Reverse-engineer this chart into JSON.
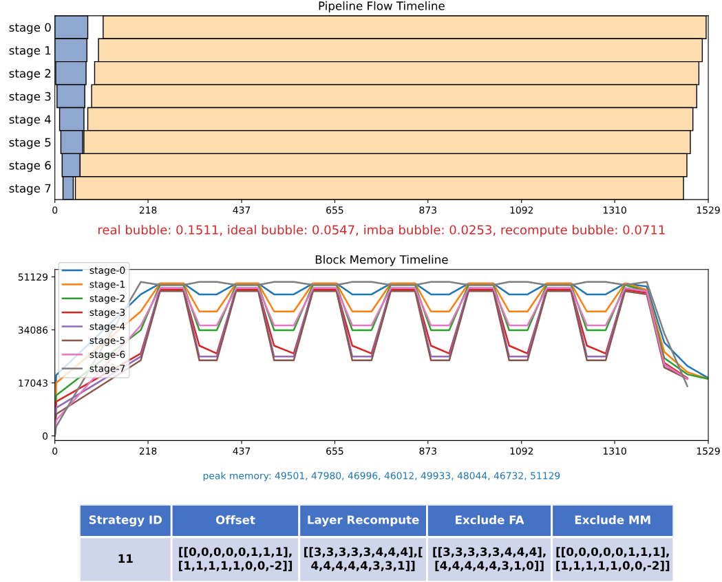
{
  "chart_data": [
    {
      "type": "bar",
      "orientation": "horizontal",
      "title": "Pipeline Flow Timeline",
      "categories": [
        "stage 0",
        "stage 1",
        "stage 2",
        "stage 3",
        "stage 4",
        "stage 5",
        "stage 6",
        "stage 7"
      ],
      "series": [
        {
          "color": "#8fa8d0",
          "base": [
            0,
            0,
            2,
            5,
            11,
            14,
            17,
            19
          ],
          "values": [
            77,
            75,
            71,
            65,
            57,
            51,
            42,
            24
          ]
        },
        {
          "color": "#fddcae",
          "base": [
            113,
            102,
            93,
            86,
            77,
            68,
            59,
            48
          ],
          "values": [
            1411,
            1413,
            1414,
            1416,
            1416,
            1419,
            1420,
            1423
          ]
        }
      ],
      "xlim": [
        0,
        1529
      ],
      "xticks": [
        0,
        218,
        437,
        655,
        873,
        1092,
        1310,
        1529
      ],
      "grid": false,
      "annotations": [
        "real bubble: 0.1511, ideal bubble: 0.0547, imba bubble: 0.0253, recompute bubble: 0.0711"
      ]
    },
    {
      "type": "line",
      "title": "Block Memory Timeline",
      "x": [
        0,
        3,
        201,
        246,
        301,
        338,
        379,
        424,
        476,
        513,
        559,
        604,
        659,
        696,
        741,
        786,
        843,
        880,
        923,
        968,
        1026,
        1063,
        1106,
        1151,
        1208,
        1245,
        1289,
        1334,
        1385,
        1426,
        1480,
        1529
      ],
      "series": [
        {
          "name": "stage-0",
          "color": "#1f77b4",
          "values": [
            0,
            19500,
            45500,
            49000,
            49000,
            45500,
            45500,
            49000,
            49000,
            45500,
            45500,
            49000,
            49000,
            45500,
            45500,
            49000,
            49000,
            45500,
            45500,
            49000,
            49000,
            45500,
            45500,
            49000,
            49000,
            45500,
            45500,
            49000,
            48000,
            30000,
            22500,
            18600
          ]
        },
        {
          "name": "stage-1",
          "color": "#ff7f0e",
          "values": [
            0,
            17000,
            40000,
            49000,
            49000,
            40000,
            40000,
            49000,
            49000,
            40000,
            40000,
            49000,
            49000,
            40000,
            40000,
            49000,
            49000,
            40000,
            40000,
            49000,
            49000,
            40000,
            40000,
            49000,
            49000,
            40000,
            40000,
            49000,
            47000,
            27000,
            20500,
            18300
          ]
        },
        {
          "name": "stage-2",
          "color": "#2ca02c",
          "values": [
            0,
            13000,
            34000,
            48500,
            48500,
            34000,
            34000,
            48500,
            48500,
            34000,
            34000,
            48500,
            48500,
            34000,
            34000,
            48500,
            48500,
            34000,
            34000,
            48500,
            48500,
            34000,
            34000,
            48500,
            48500,
            34000,
            34000,
            48500,
            46500,
            25000,
            19800,
            18300
          ]
        },
        {
          "name": "stage-3",
          "color": "#d62728",
          "values": [
            0,
            11000,
            26500,
            47000,
            47000,
            29000,
            26500,
            47000,
            47000,
            29000,
            26500,
            47000,
            47000,
            29000,
            26500,
            47000,
            47000,
            29000,
            26500,
            47000,
            47000,
            29000,
            26500,
            47000,
            47000,
            29000,
            26500,
            47000,
            46000,
            23500,
            18600,
            null
          ]
        },
        {
          "name": "stage-4",
          "color": "#9467bd",
          "values": [
            0,
            9000,
            25500,
            47500,
            47500,
            25500,
            25500,
            47500,
            47500,
            25500,
            25500,
            47500,
            47500,
            25500,
            25500,
            47500,
            47500,
            25500,
            25500,
            47500,
            47500,
            25500,
            25500,
            47500,
            47500,
            25500,
            25500,
            47500,
            46500,
            22800,
            18400,
            null
          ]
        },
        {
          "name": "stage-5",
          "color": "#8c564b",
          "values": [
            0,
            7000,
            24300,
            46500,
            46500,
            24300,
            24300,
            46500,
            46500,
            24300,
            24300,
            46500,
            46500,
            24300,
            24300,
            46500,
            46500,
            24300,
            24300,
            46500,
            46500,
            24300,
            24300,
            46500,
            46500,
            24300,
            24300,
            46500,
            45500,
            22000,
            18300,
            null
          ]
        },
        {
          "name": "stage-6",
          "color": "#e377c2",
          "values": [
            0,
            5000,
            35500,
            47500,
            47500,
            35500,
            35500,
            47500,
            47500,
            35500,
            35500,
            47500,
            47500,
            35500,
            35500,
            47500,
            47500,
            35500,
            35500,
            47500,
            47500,
            35500,
            35500,
            47500,
            47500,
            35500,
            35500,
            47500,
            46500,
            23000,
            18300,
            null
          ]
        },
        {
          "name": "stage-7",
          "color": "#7f7f7f",
          "values": [
            0,
            3000,
            49500,
            48500,
            48500,
            49500,
            49500,
            48500,
            48500,
            49500,
            49500,
            48500,
            48500,
            49500,
            49500,
            48500,
            48500,
            49500,
            49500,
            48500,
            48500,
            49500,
            49500,
            48500,
            48500,
            49500,
            49500,
            48500,
            49500,
            33000,
            16000,
            null
          ]
        }
      ],
      "xlim": [
        0,
        1529
      ],
      "xticks": [
        0,
        218,
        437,
        655,
        873,
        1092,
        1310,
        1529
      ],
      "ylim": [
        -1500,
        53500
      ],
      "yticks": [
        0,
        17043,
        34086,
        51129
      ],
      "grid": false,
      "legend": "top left",
      "marker": "none",
      "line_style": "solid",
      "annotations": [
        "peak memory: 49501, 47980, 46996, 46012, 49933, 48044, 46732, 51129"
      ]
    },
    {
      "type": "other",
      "categories": [
        "Strategy ID",
        "Offset",
        "Layer Recompute",
        "Exclude FA",
        "Exclude MM"
      ],
      "annotations": [
        "11",
        "[[0,0,0,0,0,1,1,1],\n[1,1,1,1,1,0,0,-2]]",
        "[[3,3,3,3,3,4,4,4],[\n4,4,4,4,4,3,3,1]]",
        "[[3,3,3,3,3,4,4,4],\n[4,4,4,4,4,3,1,0]]",
        "[[0,0,0,0,0,1,1,1],\n[1,1,1,1,1,0,0,-2]]"
      ]
    }
  ]
}
